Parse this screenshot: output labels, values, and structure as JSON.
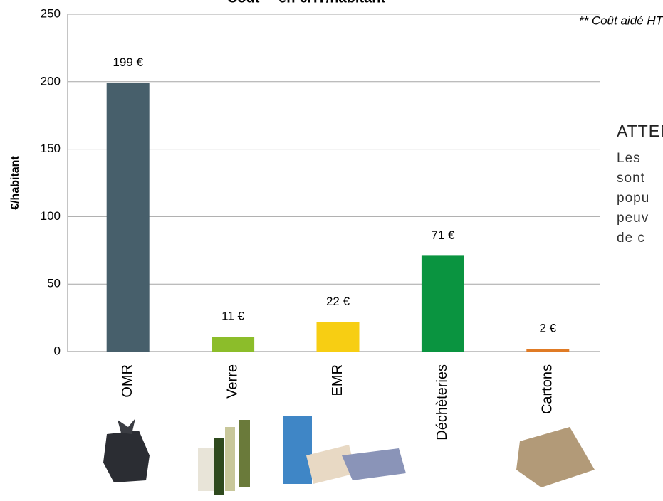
{
  "chart_data": {
    "type": "bar",
    "title": "Coût ** en €HT/habitant",
    "note": "** Coût aidé HT",
    "y_label": "€/habitant",
    "categories": [
      "OMR",
      "Verre",
      "EMR",
      "Déchèteries",
      "Cartons"
    ],
    "values": [
      199,
      11,
      22,
      71,
      2
    ],
    "value_labels": [
      "199 €",
      "11 €",
      "22 €",
      "71 €",
      "2 €"
    ],
    "colors": [
      "#475f6b",
      "#8cbd2a",
      "#f7ce13",
      "#0a9440",
      "#e07b25"
    ],
    "ylim": [
      0,
      250
    ],
    "yticks": [
      0,
      50,
      100,
      150,
      200,
      250
    ],
    "grid": true
  },
  "side_text": {
    "heading": "ATTEN",
    "lines": [
      "Les",
      "sont",
      "popu",
      "peuv",
      "de c"
    ]
  }
}
